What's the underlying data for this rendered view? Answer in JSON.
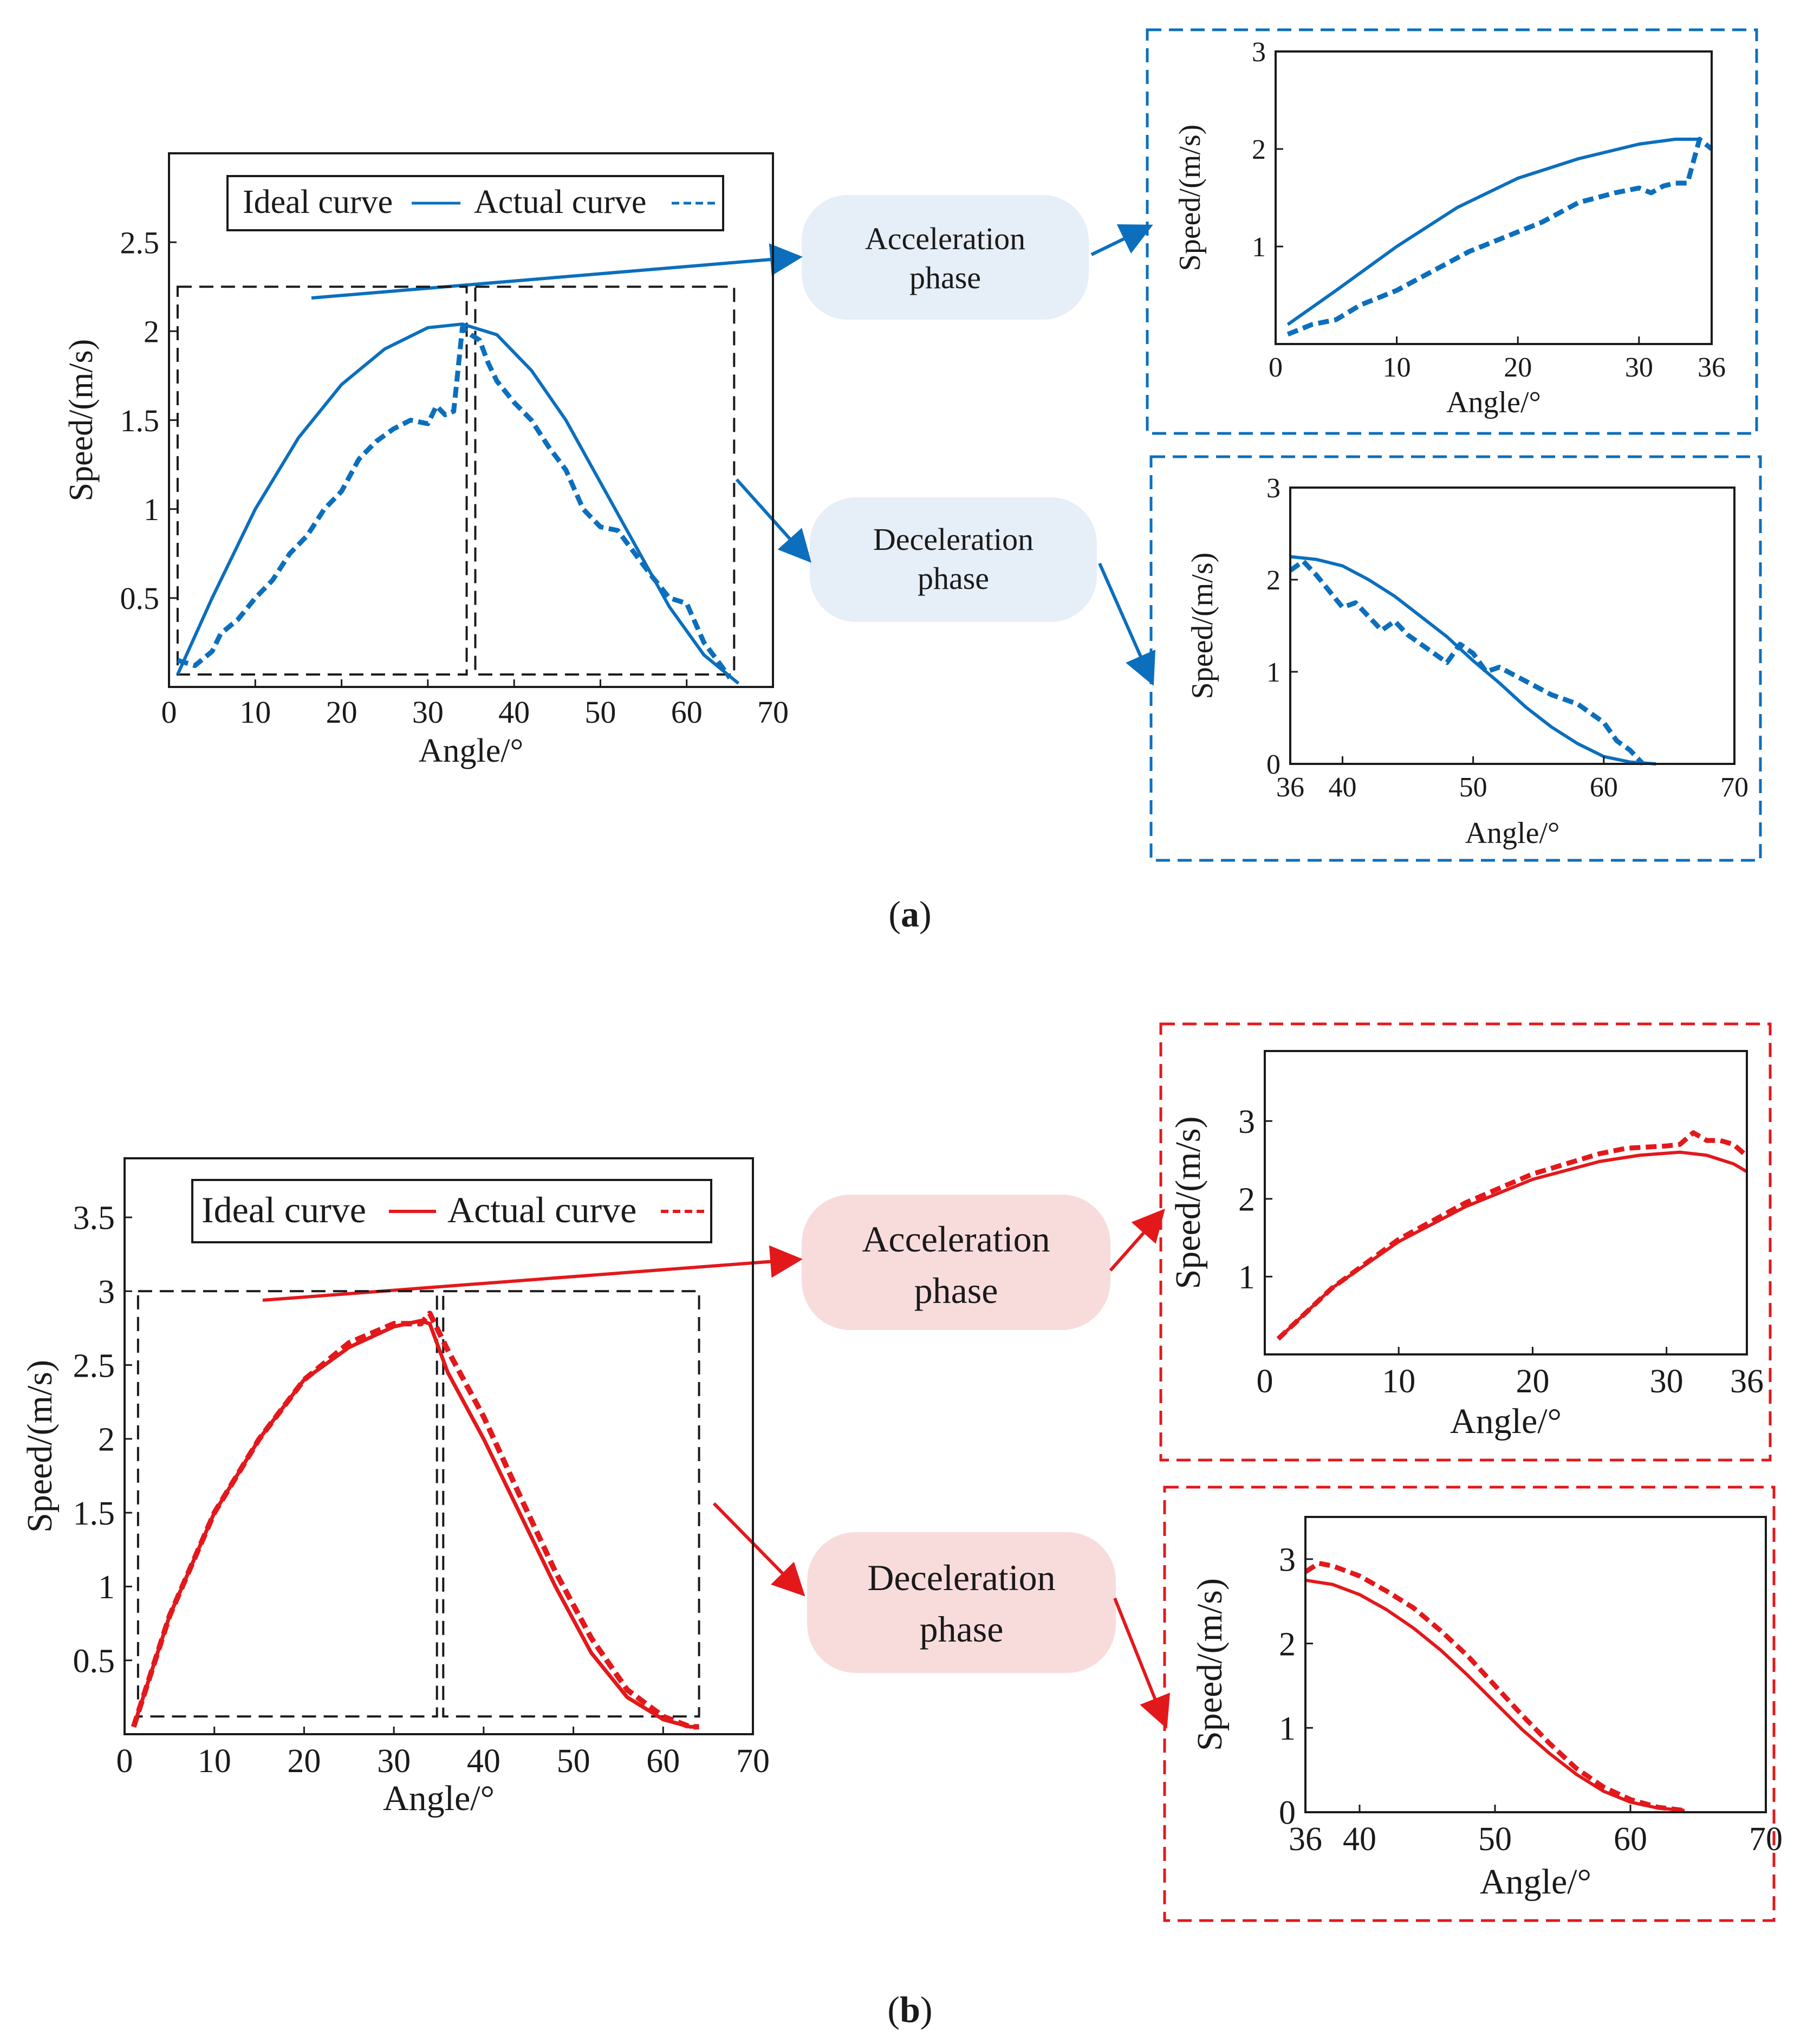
{
  "panels": [
    {
      "id": "a",
      "color": "#0b6fbd",
      "pill_color": "#e6eef7",
      "caption": "a",
      "legend": {
        "ideal": "Ideal curve",
        "actual": "Actual curve"
      },
      "phases": {
        "accel": [
          "Acceleration",
          "phase"
        ],
        "decel": [
          "Deceleration",
          "phase"
        ]
      }
    },
    {
      "id": "b",
      "color": "#e3181b",
      "pill_color": "#f8dcdc",
      "caption": "b",
      "legend": {
        "ideal": "Ideal curve",
        "actual": "Actual curve"
      },
      "phases": {
        "accel": [
          "Acceleration",
          "phase"
        ],
        "decel": [
          "Deceleration",
          "phase"
        ]
      }
    }
  ],
  "chart_data": [
    {
      "id": "a-main",
      "type": "line",
      "xlabel": "Angle/°",
      "ylabel": "Speed/(m/s)",
      "xlim": [
        0,
        70
      ],
      "ylim": [
        0,
        3
      ],
      "xticks": [
        0,
        10,
        20,
        30,
        40,
        50,
        60,
        70
      ],
      "yticks": [
        0.5,
        1,
        1.5,
        2,
        2.5
      ],
      "series": [
        {
          "name": "Ideal curve",
          "style": "solid",
          "x": [
            1,
            5,
            10,
            15,
            20,
            25,
            30,
            34,
            38,
            42,
            46,
            50,
            54,
            58,
            62,
            66
          ],
          "y": [
            0.07,
            0.5,
            1.0,
            1.4,
            1.7,
            1.9,
            2.02,
            2.04,
            1.98,
            1.78,
            1.5,
            1.15,
            0.8,
            0.45,
            0.18,
            0.02
          ]
        },
        {
          "name": "Actual curve",
          "style": "dashed",
          "x": [
            1,
            3,
            4,
            5,
            6,
            8,
            10,
            12,
            14,
            16,
            18,
            20,
            22,
            24,
            26,
            28,
            30,
            31,
            32,
            33,
            34,
            35,
            36,
            37,
            38,
            40,
            42,
            44,
            46,
            48,
            50,
            52,
            54,
            56,
            58,
            60,
            62,
            64,
            65
          ],
          "y": [
            0.15,
            0.12,
            0.16,
            0.2,
            0.3,
            0.38,
            0.5,
            0.6,
            0.75,
            0.85,
            1.0,
            1.1,
            1.28,
            1.38,
            1.45,
            1.5,
            1.48,
            1.58,
            1.53,
            1.55,
            2.02,
            1.98,
            1.95,
            1.82,
            1.72,
            1.6,
            1.5,
            1.35,
            1.22,
            1.0,
            0.9,
            0.88,
            0.75,
            0.62,
            0.5,
            0.47,
            0.25,
            0.12,
            0.05
          ]
        }
      ],
      "zoom_regions": [
        [
          1,
          34.5
        ],
        [
          35.5,
          65.5
        ]
      ]
    },
    {
      "id": "a-accel",
      "type": "line",
      "xlabel": "Angle/°",
      "ylabel": "Speed/(m/s)",
      "xlim": [
        0,
        36
      ],
      "ylim": [
        0,
        3
      ],
      "xticks": [
        0,
        10,
        20,
        30,
        36
      ],
      "yticks": [
        1,
        2,
        3
      ],
      "series": [
        {
          "name": "Ideal curve",
          "style": "solid",
          "x": [
            1,
            5,
            10,
            15,
            20,
            25,
            30,
            33,
            35
          ],
          "y": [
            0.2,
            0.55,
            1.0,
            1.4,
            1.7,
            1.9,
            2.05,
            2.1,
            2.1
          ]
        },
        {
          "name": "Actual curve",
          "style": "dashed",
          "x": [
            1,
            3,
            5,
            7,
            10,
            13,
            16,
            19,
            22,
            25,
            28,
            30,
            31,
            32,
            33,
            34,
            35,
            36
          ],
          "y": [
            0.1,
            0.2,
            0.25,
            0.4,
            0.55,
            0.75,
            0.95,
            1.1,
            1.25,
            1.45,
            1.55,
            1.6,
            1.55,
            1.62,
            1.65,
            1.65,
            2.1,
            2.0
          ]
        }
      ]
    },
    {
      "id": "a-decel",
      "type": "line",
      "xlabel": "Angle/°",
      "ylabel": "Speed/(m/s)",
      "xlim": [
        36,
        70
      ],
      "ylim": [
        0,
        3
      ],
      "xticks": [
        36,
        40,
        50,
        60,
        70
      ],
      "yticks": [
        0,
        1,
        2,
        3
      ],
      "series": [
        {
          "name": "Ideal curve",
          "style": "solid",
          "x": [
            36,
            38,
            40,
            42,
            44,
            46,
            48,
            50,
            52,
            54,
            56,
            58,
            60,
            62,
            64
          ],
          "y": [
            2.25,
            2.22,
            2.15,
            2.0,
            1.82,
            1.6,
            1.38,
            1.12,
            0.88,
            0.62,
            0.4,
            0.22,
            0.08,
            0.02,
            0.0
          ]
        },
        {
          "name": "Actual curve",
          "style": "dashed",
          "x": [
            36,
            37,
            38,
            40,
            41,
            42,
            43,
            44,
            45,
            47,
            48,
            49,
            50,
            51,
            52,
            54,
            56,
            58,
            60,
            61,
            62,
            63
          ],
          "y": [
            2.1,
            2.2,
            2.05,
            1.7,
            1.75,
            1.6,
            1.45,
            1.55,
            1.4,
            1.2,
            1.1,
            1.3,
            1.2,
            1.0,
            1.05,
            0.9,
            0.75,
            0.65,
            0.45,
            0.25,
            0.15,
            0.0
          ]
        }
      ]
    },
    {
      "id": "b-main",
      "type": "line",
      "xlabel": "Angle/°",
      "ylabel": "Speed/(m/s)",
      "xlim": [
        0,
        70
      ],
      "ylim": [
        0,
        3.9
      ],
      "xticks": [
        0,
        10,
        20,
        30,
        40,
        50,
        60,
        70
      ],
      "yticks": [
        0.5,
        1,
        1.5,
        2,
        2.5,
        3,
        3.5
      ],
      "series": [
        {
          "name": "Ideal curve",
          "style": "solid",
          "x": [
            1,
            5,
            10,
            15,
            20,
            25,
            30,
            33,
            34,
            36,
            40,
            44,
            48,
            52,
            56,
            60,
            63,
            64
          ],
          "y": [
            0.05,
            0.8,
            1.5,
            2.0,
            2.4,
            2.62,
            2.76,
            2.8,
            2.78,
            2.45,
            2.0,
            1.5,
            1.0,
            0.55,
            0.25,
            0.1,
            0.05,
            0.05
          ]
        },
        {
          "name": "Actual curve",
          "style": "dashed",
          "x": [
            1,
            5,
            10,
            15,
            20,
            25,
            30,
            33,
            34,
            36,
            40,
            44,
            48,
            52,
            56,
            60,
            63,
            64
          ],
          "y": [
            0.05,
            0.8,
            1.5,
            2.0,
            2.4,
            2.65,
            2.78,
            2.78,
            2.85,
            2.6,
            2.15,
            1.62,
            1.1,
            0.65,
            0.3,
            0.12,
            0.05,
            0.05
          ]
        }
      ],
      "zoom_regions": [
        [
          1.5,
          34.8
        ],
        [
          35.5,
          64
        ]
      ]
    },
    {
      "id": "b-accel",
      "type": "line",
      "xlabel": "Angle/°",
      "ylabel": "Speed/(m/s)",
      "xlim": [
        0,
        36
      ],
      "ylim": [
        0,
        3.9
      ],
      "xticks": [
        0,
        10,
        20,
        30,
        36
      ],
      "yticks": [
        1,
        2,
        3
      ],
      "series": [
        {
          "name": "Ideal curve",
          "style": "solid",
          "x": [
            1,
            5,
            10,
            15,
            20,
            25,
            28,
            31,
            33,
            35,
            36
          ],
          "y": [
            0.2,
            0.85,
            1.45,
            1.9,
            2.25,
            2.48,
            2.56,
            2.6,
            2.56,
            2.45,
            2.35
          ]
        },
        {
          "name": "Actual curve",
          "style": "dashed",
          "x": [
            1,
            5,
            10,
            15,
            20,
            25,
            27,
            30,
            31,
            32,
            33,
            34,
            35,
            36
          ],
          "y": [
            0.2,
            0.85,
            1.48,
            1.95,
            2.32,
            2.58,
            2.65,
            2.68,
            2.7,
            2.85,
            2.75,
            2.75,
            2.7,
            2.55
          ]
        }
      ]
    },
    {
      "id": "b-decel",
      "type": "line",
      "xlabel": "Angle/°",
      "ylabel": "Speed/(m/s)",
      "xlim": [
        36,
        70
      ],
      "ylim": [
        0,
        3.5
      ],
      "xticks": [
        36,
        40,
        50,
        60,
        70
      ],
      "yticks": [
        0,
        1,
        2,
        3
      ],
      "series": [
        {
          "name": "Ideal curve",
          "style": "solid",
          "x": [
            36,
            38,
            40,
            42,
            44,
            46,
            48,
            50,
            52,
            54,
            56,
            58,
            60,
            62,
            64
          ],
          "y": [
            2.75,
            2.7,
            2.58,
            2.4,
            2.18,
            1.92,
            1.62,
            1.3,
            0.98,
            0.7,
            0.45,
            0.25,
            0.12,
            0.05,
            0.02
          ]
        },
        {
          "name": "Actual curve",
          "style": "dashed",
          "x": [
            36,
            37,
            38,
            40,
            42,
            44,
            46,
            48,
            50,
            52,
            54,
            56,
            58,
            60,
            62,
            64
          ],
          "y": [
            2.85,
            2.95,
            2.92,
            2.8,
            2.62,
            2.42,
            2.15,
            1.85,
            1.5,
            1.15,
            0.82,
            0.52,
            0.3,
            0.15,
            0.06,
            0.02
          ]
        }
      ]
    }
  ]
}
